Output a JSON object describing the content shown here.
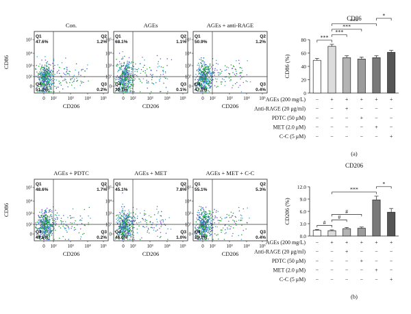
{
  "flow": {
    "xlabel": "CD206",
    "ylabel": "CD86",
    "ticks": [
      "0",
      "10²",
      "10³",
      "10⁴",
      "10⁵"
    ],
    "quadrant_names": [
      "Q1",
      "Q2",
      "Q3",
      "Q4"
    ],
    "panels": [
      {
        "title": "Con.",
        "q1": "47.6%",
        "q2": "1.2%",
        "q3": "0.2%",
        "q4": "51.0%"
      },
      {
        "title": "AGEs",
        "q1": "68.1%",
        "q2": "1.1%",
        "q3": "0.1%",
        "q4": "30.7%"
      },
      {
        "title": "AGEs + anti-RAGE",
        "q1": "50.9%",
        "q2": "1.2%",
        "q3": "0.4%",
        "q4": "47.5%"
      },
      {
        "title": "AGEs + PDTC",
        "q1": "48.6%",
        "q2": "1.7%",
        "q3": "0.2%",
        "q4": "49.5%"
      },
      {
        "title": "AGEs + MET",
        "q1": "45.1%",
        "q2": "7.8%",
        "q3": "1.0%",
        "q4": "46.0%"
      },
      {
        "title": "AGEs + MET + C-C",
        "q1": "55.1%",
        "q2": "5.3%",
        "q3": "0.4%",
        "q4": "39.1%"
      }
    ]
  },
  "treatments": {
    "rows": [
      {
        "label": "AGEs (200 mg/L)",
        "signs": [
          "−",
          "+",
          "+",
          "+",
          "+",
          "+"
        ]
      },
      {
        "label": "Anti-RAGE (20 μg/ml)",
        "signs": [
          "−",
          "−",
          "+",
          "−",
          "−",
          "−"
        ]
      },
      {
        "label": "PDTC (50 μM)",
        "signs": [
          "−",
          "−",
          "−",
          "+",
          "−",
          "−"
        ]
      },
      {
        "label": "MET (2.0 μM)",
        "signs": [
          "−",
          "−",
          "−",
          "−",
          "+",
          "−"
        ]
      },
      {
        "label": "C-C (5 μM)",
        "signs": [
          "−",
          "−",
          "−",
          "−",
          "−",
          "+"
        ]
      }
    ]
  },
  "chart_data": [
    {
      "type": "bar",
      "title": "CD86",
      "panel_label": "(a)",
      "xlabel": "",
      "ylabel": "CD86 (%)",
      "ylim": [
        0,
        80
      ],
      "yticks": [
        "0",
        "20",
        "40",
        "60",
        "80"
      ],
      "grid": false,
      "values": [
        49,
        70,
        53,
        51,
        53,
        61
      ],
      "errors": [
        3,
        3,
        3,
        3,
        3,
        3
      ],
      "bar_colors": [
        "#ffffff",
        "#dcdcdc",
        "#b4b4b4",
        "#9b9b9b",
        "#7a7a7a",
        "#555555"
      ],
      "annotations": [
        {
          "from": 0,
          "to": 1,
          "text": "***"
        },
        {
          "from": 1,
          "to": 2,
          "text": "***"
        },
        {
          "from": 1,
          "to": 3,
          "text": "***"
        },
        {
          "from": 1,
          "to": 4,
          "text": "***"
        },
        {
          "from": 4,
          "to": 5,
          "text": "*"
        }
      ]
    },
    {
      "type": "bar",
      "title": "CD206",
      "panel_label": "(b)",
      "xlabel": "",
      "ylabel": "CD206 (%)",
      "ylim": [
        0,
        12
      ],
      "yticks": [
        "0.0",
        "3.0",
        "6.0",
        "9.0",
        "12.0"
      ],
      "grid": false,
      "values": [
        1.4,
        1.3,
        1.8,
        1.9,
        8.8,
        5.8
      ],
      "errors": [
        0.2,
        0.2,
        0.3,
        0.3,
        0.9,
        0.9
      ],
      "bar_colors": [
        "#ffffff",
        "#dcdcdc",
        "#b4b4b4",
        "#9b9b9b",
        "#7a7a7a",
        "#555555"
      ],
      "annotations": [
        {
          "from": 0,
          "to": 1,
          "text": "#"
        },
        {
          "from": 1,
          "to": 2,
          "text": "#"
        },
        {
          "from": 1,
          "to": 3,
          "text": "#"
        },
        {
          "from": 1,
          "to": 4,
          "text": "***"
        },
        {
          "from": 4,
          "to": 5,
          "text": "*"
        }
      ]
    }
  ]
}
